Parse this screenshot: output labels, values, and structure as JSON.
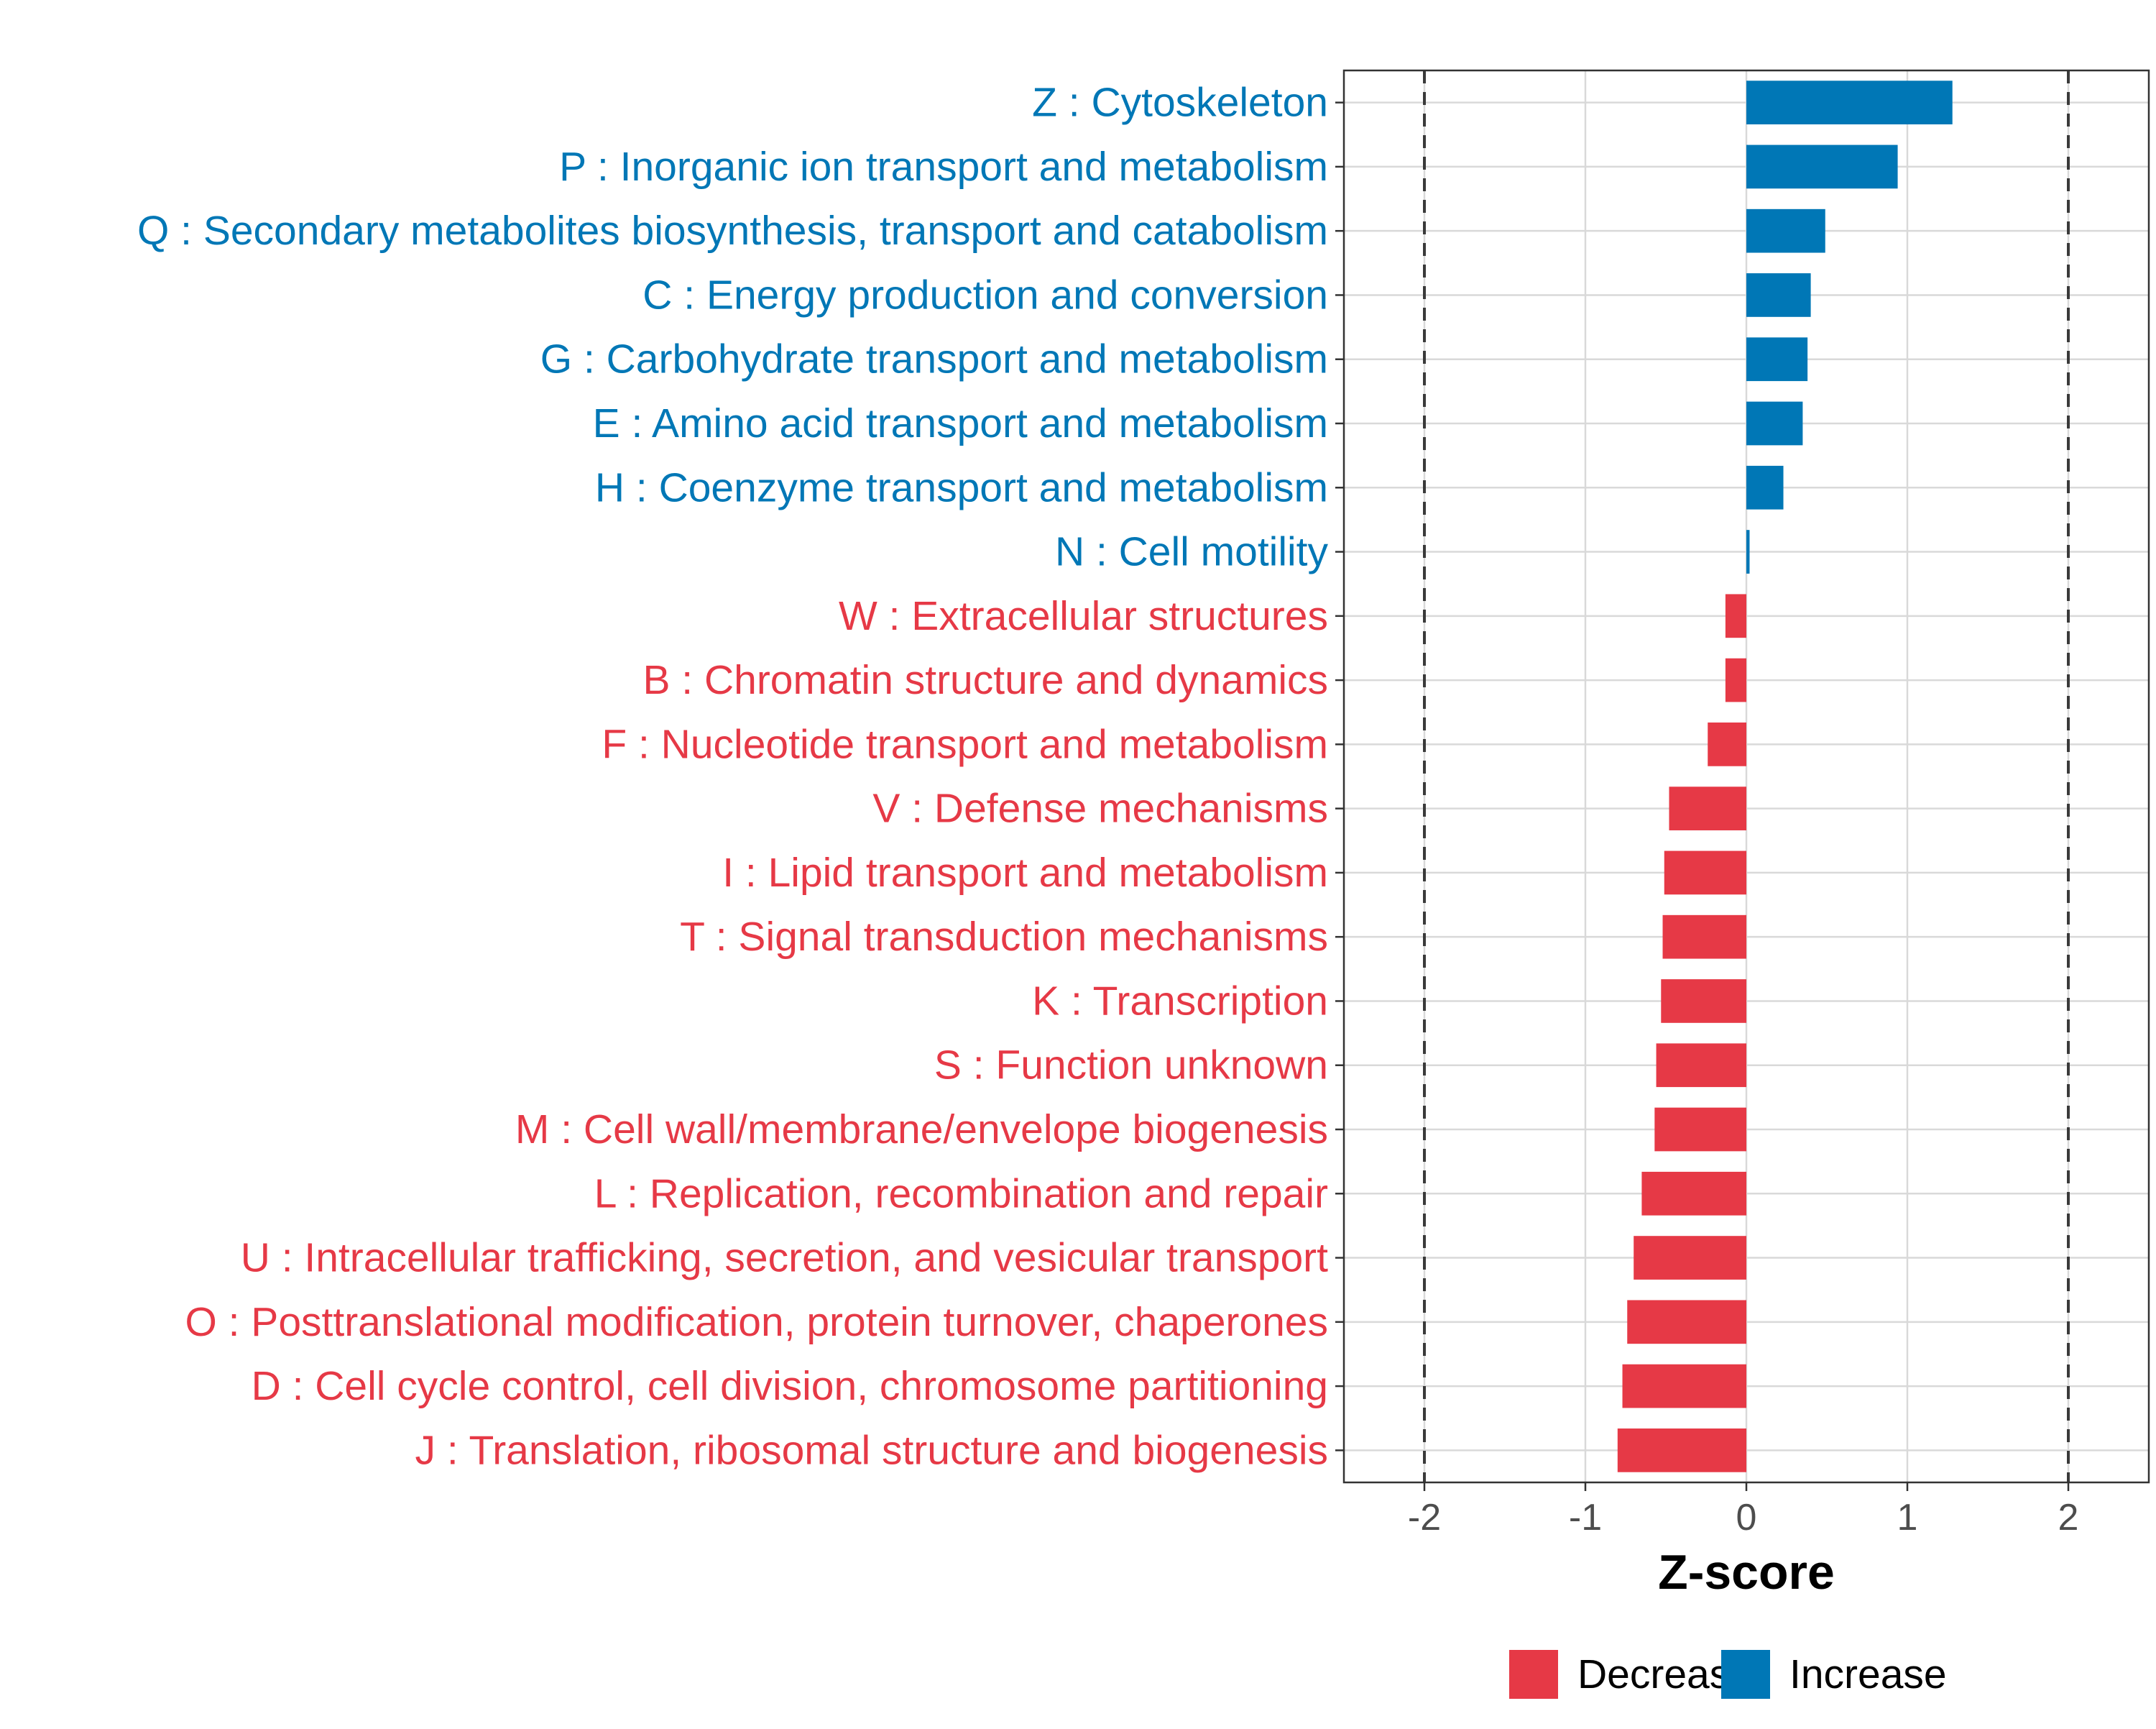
{
  "chart_data": {
    "type": "bar",
    "orientation": "horizontal",
    "title": "",
    "xlabel": "Z-score",
    "ylabel": "",
    "xlim": [
      -2.5,
      2.5
    ],
    "x_ticks": [
      -2,
      -1,
      0,
      1,
      2
    ],
    "x_tick_labels": [
      "-2",
      "-1",
      "0",
      "1",
      "2"
    ],
    "reference_lines": [
      -2,
      2
    ],
    "grid": true,
    "legend_position": "bottom",
    "colors": {
      "Decrease": "#e63946",
      "Increase": "#0077b6"
    },
    "series": [
      {
        "name": "Decrease",
        "color": "#e63946"
      },
      {
        "name": "Increase",
        "color": "#0077b6"
      }
    ],
    "categories": [
      "Z : Cytoskeleton",
      "P : Inorganic ion transport and metabolism",
      "Q : Secondary metabolites biosynthesis, transport and catabolism",
      "C : Energy production and conversion",
      "G : Carbohydrate transport and metabolism",
      "E : Amino acid transport and metabolism",
      "H : Coenzyme transport and metabolism",
      "N : Cell motility",
      "W : Extracellular structures",
      "B : Chromatin structure and dynamics",
      "F : Nucleotide transport and metabolism",
      "V : Defense mechanisms",
      "I : Lipid transport and metabolism",
      "T : Signal transduction mechanisms",
      "K : Transcription",
      "S : Function unknown",
      "M : Cell wall/membrane/envelope biogenesis",
      "L : Replication, recombination and repair",
      "U : Intracellular trafficking, secretion, and vesicular transport",
      "O : Posttranslational modification, protein turnover, chaperones",
      "D : Cell cycle control, cell division, chromosome partitioning",
      "J : Translation, ribosomal structure and biogenesis"
    ],
    "values": [
      1.28,
      0.94,
      0.49,
      0.4,
      0.38,
      0.35,
      0.23,
      0.02,
      -0.13,
      -0.13,
      -0.24,
      -0.48,
      -0.51,
      -0.52,
      -0.53,
      -0.56,
      -0.57,
      -0.65,
      -0.7,
      -0.74,
      -0.77,
      -0.8
    ],
    "groups": [
      "Increase",
      "Increase",
      "Increase",
      "Increase",
      "Increase",
      "Increase",
      "Increase",
      "Increase",
      "Decrease",
      "Decrease",
      "Decrease",
      "Decrease",
      "Decrease",
      "Decrease",
      "Decrease",
      "Decrease",
      "Decrease",
      "Decrease",
      "Decrease",
      "Decrease",
      "Decrease",
      "Decrease"
    ]
  },
  "legend": {
    "items": [
      "Decrease",
      "Increase"
    ]
  }
}
